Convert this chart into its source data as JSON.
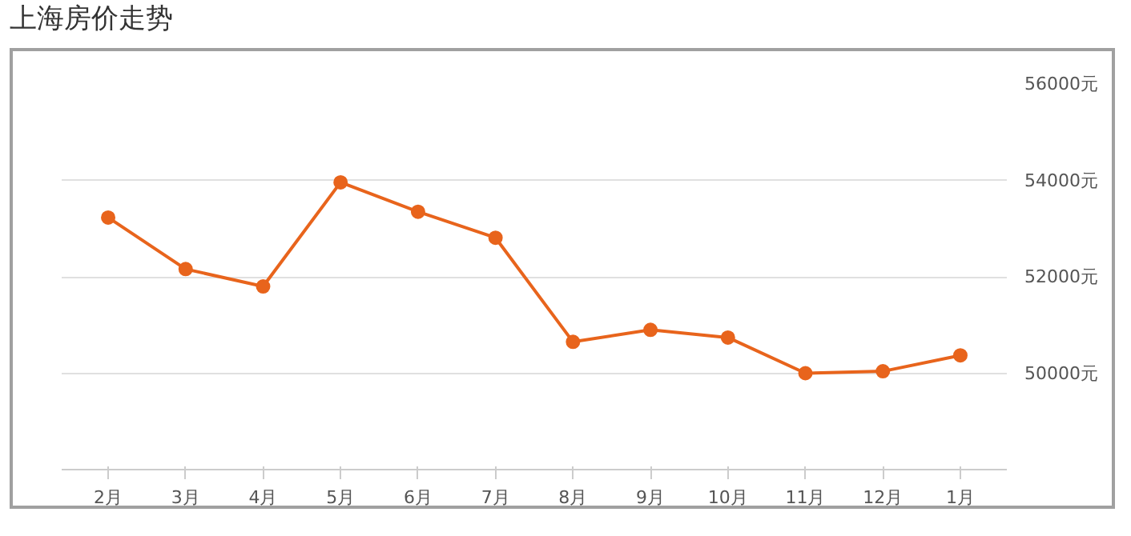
{
  "chart_data": {
    "type": "line",
    "title": "上海房价走势",
    "categories": [
      "2月",
      "3月",
      "4月",
      "5月",
      "6月",
      "7月",
      "8月",
      "9月",
      "10月",
      "11月",
      "12月",
      "1月"
    ],
    "series": [
      {
        "color": "#e8641c",
        "values": [
          53230,
          52160,
          51800,
          53960,
          53350,
          52810,
          50650,
          50900,
          50740,
          50000,
          50040,
          50370
        ]
      }
    ],
    "ylim": [
      48000,
      56000
    ],
    "yticks": [
      {
        "value": 50000,
        "label": "50000元"
      },
      {
        "value": 52000,
        "label": "52000元"
      },
      {
        "value": 54000,
        "label": "54000元"
      },
      {
        "value": 56000,
        "label": "56000元"
      }
    ],
    "grid": "y",
    "marker": "circle",
    "line_style": "solid"
  }
}
